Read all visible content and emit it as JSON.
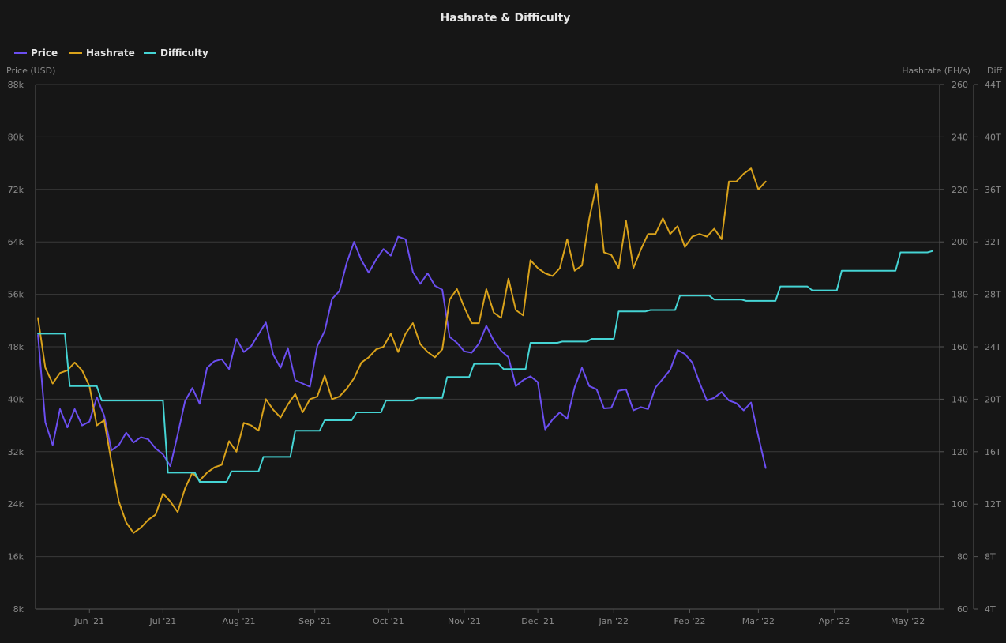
{
  "chart_data": {
    "type": "line",
    "title": "Hashrate & Difficulty",
    "legend": [
      "Price",
      "Hashrate",
      "Difficulty"
    ],
    "legend_position": "top-left",
    "grid": true,
    "x_labels": [
      "Jun '21",
      "Jul '21",
      "Aug '21",
      "Sep '21",
      "Oct '21",
      "Nov '21",
      "Dec '21",
      "Jan '22",
      "Feb '22",
      "Mar '22",
      "Apr '22",
      "May '22"
    ],
    "x_range": [
      "2021-05-10",
      "2022-05-14"
    ],
    "axes": {
      "price": {
        "title": "Price (USD)",
        "ticks": [
          "8k",
          "16k",
          "24k",
          "32k",
          "40k",
          "48k",
          "56k",
          "64k",
          "72k",
          "80k",
          "88k"
        ],
        "range": [
          8000,
          88000
        ]
      },
      "hashrate": {
        "title": "Hashrate (EH/s)",
        "ticks": [
          "60",
          "80",
          "100",
          "120",
          "140",
          "160",
          "180",
          "200",
          "220",
          "240",
          "260"
        ],
        "range": [
          60,
          260
        ]
      },
      "difficulty": {
        "title": "Diff",
        "ticks": [
          "4T",
          "8T",
          "12T",
          "16T",
          "20T",
          "24T",
          "28T",
          "32T",
          "36T",
          "40T",
          "44T"
        ],
        "range": [
          4,
          44
        ]
      }
    },
    "colors": {
      "price": "#6b4ef0",
      "hashrate": "#d9a21b",
      "difficulty": "#45d4d4"
    },
    "series": [
      {
        "name": "Price",
        "axis": "price",
        "points": [
          [
            "2021-05-11",
            49800
          ],
          [
            "2021-05-14",
            36500
          ],
          [
            "2021-05-17",
            33000
          ],
          [
            "2021-05-20",
            38500
          ],
          [
            "2021-05-23",
            35700
          ],
          [
            "2021-05-26",
            38500
          ],
          [
            "2021-05-29",
            36000
          ],
          [
            "2021-06-01",
            36600
          ],
          [
            "2021-06-04",
            40300
          ],
          [
            "2021-06-07",
            37500
          ],
          [
            "2021-06-10",
            32200
          ],
          [
            "2021-06-13",
            33000
          ],
          [
            "2021-06-16",
            34900
          ],
          [
            "2021-06-19",
            33400
          ],
          [
            "2021-06-22",
            34200
          ],
          [
            "2021-06-25",
            33900
          ],
          [
            "2021-06-28",
            32500
          ],
          [
            "2021-07-01",
            31600
          ],
          [
            "2021-07-04",
            29800
          ],
          [
            "2021-07-07",
            34600
          ],
          [
            "2021-07-10",
            39700
          ],
          [
            "2021-07-13",
            41700
          ],
          [
            "2021-07-16",
            39300
          ],
          [
            "2021-07-19",
            44800
          ],
          [
            "2021-07-22",
            45800
          ],
          [
            "2021-07-25",
            46100
          ],
          [
            "2021-07-28",
            44600
          ],
          [
            "2021-07-31",
            49200
          ],
          [
            "2021-08-03",
            47200
          ],
          [
            "2021-08-06",
            48100
          ],
          [
            "2021-08-09",
            49900
          ],
          [
            "2021-08-12",
            51700
          ],
          [
            "2021-08-15",
            46800
          ],
          [
            "2021-08-18",
            44800
          ],
          [
            "2021-08-21",
            47800
          ],
          [
            "2021-08-24",
            42900
          ],
          [
            "2021-08-27",
            42400
          ],
          [
            "2021-08-30",
            41900
          ],
          [
            "2021-09-02",
            48100
          ],
          [
            "2021-09-05",
            50400
          ],
          [
            "2021-09-08",
            55300
          ],
          [
            "2021-09-11",
            56500
          ],
          [
            "2021-09-14",
            60800
          ],
          [
            "2021-09-17",
            64000
          ],
          [
            "2021-09-20",
            61200
          ],
          [
            "2021-09-23",
            59300
          ],
          [
            "2021-09-26",
            61300
          ],
          [
            "2021-09-29",
            62900
          ],
          [
            "2021-10-02",
            61900
          ],
          [
            "2021-10-05",
            64800
          ],
          [
            "2021-10-08",
            64400
          ],
          [
            "2021-10-11",
            59400
          ],
          [
            "2021-10-14",
            57600
          ],
          [
            "2021-10-17",
            59200
          ],
          [
            "2021-10-20",
            57300
          ],
          [
            "2021-10-23",
            56700
          ],
          [
            "2021-10-26",
            49500
          ],
          [
            "2021-10-29",
            48600
          ],
          [
            "2021-11-01",
            47300
          ],
          [
            "2021-11-04",
            47100
          ],
          [
            "2021-11-07",
            48500
          ],
          [
            "2021-11-10",
            51200
          ],
          [
            "2021-11-13",
            48900
          ],
          [
            "2021-11-16",
            47400
          ],
          [
            "2021-11-19",
            46400
          ],
          [
            "2021-11-22",
            42000
          ],
          [
            "2021-11-25",
            42900
          ],
          [
            "2021-11-28",
            43500
          ],
          [
            "2021-12-01",
            42600
          ],
          [
            "2021-12-04",
            35400
          ],
          [
            "2021-12-07",
            36900
          ],
          [
            "2021-12-10",
            38000
          ],
          [
            "2021-12-13",
            37000
          ],
          [
            "2021-12-16",
            41800
          ],
          [
            "2021-12-19",
            44800
          ],
          [
            "2021-12-22",
            42000
          ],
          [
            "2021-12-25",
            41500
          ],
          [
            "2021-12-28",
            38600
          ],
          [
            "2021-12-31",
            38700
          ],
          [
            "2022-01-03",
            41300
          ],
          [
            "2022-01-06",
            41500
          ],
          [
            "2022-01-09",
            38300
          ],
          [
            "2022-01-12",
            38800
          ],
          [
            "2022-01-15",
            38500
          ],
          [
            "2022-01-18",
            41800
          ],
          [
            "2022-01-21",
            43100
          ],
          [
            "2022-01-24",
            44500
          ],
          [
            "2022-01-27",
            47500
          ],
          [
            "2022-01-30",
            46900
          ],
          [
            "2022-02-02",
            45600
          ],
          [
            "2022-02-05",
            42500
          ],
          [
            "2022-02-08",
            39800
          ],
          [
            "2022-02-11",
            40200
          ],
          [
            "2022-02-14",
            41100
          ],
          [
            "2022-02-17",
            39800
          ],
          [
            "2022-02-20",
            39400
          ],
          [
            "2022-02-23",
            38300
          ],
          [
            "2022-02-26",
            39500
          ],
          [
            "2022-03-01",
            34300
          ],
          [
            "2022-03-04",
            29500
          ]
        ]
      },
      {
        "name": "Hashrate",
        "axis": "hashrate",
        "points": [
          [
            "2021-05-11",
            171
          ],
          [
            "2021-05-14",
            152
          ],
          [
            "2021-05-17",
            146
          ],
          [
            "2021-05-20",
            150
          ],
          [
            "2021-05-23",
            151
          ],
          [
            "2021-05-26",
            154
          ],
          [
            "2021-05-29",
            151
          ],
          [
            "2021-06-01",
            145
          ],
          [
            "2021-06-04",
            130
          ],
          [
            "2021-06-07",
            132
          ],
          [
            "2021-06-10",
            116
          ],
          [
            "2021-06-13",
            101
          ],
          [
            "2021-06-16",
            93
          ],
          [
            "2021-06-19",
            89
          ],
          [
            "2021-06-22",
            91
          ],
          [
            "2021-06-25",
            94
          ],
          [
            "2021-06-28",
            96
          ],
          [
            "2021-07-01",
            104
          ],
          [
            "2021-07-04",
            101
          ],
          [
            "2021-07-07",
            97
          ],
          [
            "2021-07-10",
            106
          ],
          [
            "2021-07-13",
            112
          ],
          [
            "2021-07-16",
            109
          ],
          [
            "2021-07-19",
            112
          ],
          [
            "2021-07-22",
            114
          ],
          [
            "2021-07-25",
            115
          ],
          [
            "2021-07-28",
            124
          ],
          [
            "2021-07-31",
            120
          ],
          [
            "2021-08-03",
            131
          ],
          [
            "2021-08-06",
            130
          ],
          [
            "2021-08-09",
            128
          ],
          [
            "2021-08-12",
            140
          ],
          [
            "2021-08-15",
            136
          ],
          [
            "2021-08-18",
            133
          ],
          [
            "2021-08-21",
            138
          ],
          [
            "2021-08-24",
            142
          ],
          [
            "2021-08-27",
            135
          ],
          [
            "2021-08-30",
            140
          ],
          [
            "2021-09-02",
            141
          ],
          [
            "2021-09-05",
            149
          ],
          [
            "2021-09-08",
            140
          ],
          [
            "2021-09-11",
            141
          ],
          [
            "2021-09-14",
            144
          ],
          [
            "2021-09-17",
            148
          ],
          [
            "2021-09-20",
            154
          ],
          [
            "2021-09-23",
            156
          ],
          [
            "2021-09-26",
            159
          ],
          [
            "2021-09-29",
            160
          ],
          [
            "2021-10-02",
            165
          ],
          [
            "2021-10-05",
            158
          ],
          [
            "2021-10-08",
            165
          ],
          [
            "2021-10-11",
            169
          ],
          [
            "2021-10-14",
            161
          ],
          [
            "2021-10-17",
            158
          ],
          [
            "2021-10-20",
            156
          ],
          [
            "2021-10-23",
            159
          ],
          [
            "2021-10-26",
            178
          ],
          [
            "2021-10-29",
            182
          ],
          [
            "2021-11-01",
            175
          ],
          [
            "2021-11-04",
            169
          ],
          [
            "2021-11-07",
            169
          ],
          [
            "2021-11-10",
            182
          ],
          [
            "2021-11-13",
            173
          ],
          [
            "2021-11-16",
            171
          ],
          [
            "2021-11-19",
            186
          ],
          [
            "2021-11-22",
            174
          ],
          [
            "2021-11-25",
            172
          ],
          [
            "2021-11-28",
            193
          ],
          [
            "2021-12-01",
            190
          ],
          [
            "2021-12-04",
            188
          ],
          [
            "2021-12-07",
            187
          ],
          [
            "2021-12-10",
            190
          ],
          [
            "2021-12-13",
            201
          ],
          [
            "2021-12-16",
            189
          ],
          [
            "2021-12-19",
            191
          ],
          [
            "2021-12-22",
            209
          ],
          [
            "2021-12-25",
            222
          ],
          [
            "2021-12-28",
            196
          ],
          [
            "2021-12-31",
            195
          ],
          [
            "2022-01-03",
            190
          ],
          [
            "2022-01-06",
            208
          ],
          [
            "2022-01-09",
            190
          ],
          [
            "2022-01-12",
            197
          ],
          [
            "2022-01-15",
            203
          ],
          [
            "2022-01-18",
            203
          ],
          [
            "2022-01-21",
            209
          ],
          [
            "2022-01-24",
            203
          ],
          [
            "2022-01-27",
            206
          ],
          [
            "2022-01-30",
            198
          ],
          [
            "2022-02-02",
            202
          ],
          [
            "2022-02-05",
            203
          ],
          [
            "2022-02-08",
            202
          ],
          [
            "2022-02-11",
            205
          ],
          [
            "2022-02-14",
            201
          ],
          [
            "2022-02-17",
            223
          ],
          [
            "2022-02-20",
            223
          ],
          [
            "2022-02-23",
            226
          ],
          [
            "2022-02-26",
            228
          ],
          [
            "2022-03-01",
            220
          ],
          [
            "2022-03-04",
            223
          ]
        ]
      },
      {
        "name": "Difficulty",
        "axis": "difficulty",
        "points": [
          [
            "2021-05-11",
            25.0
          ],
          [
            "2021-05-22",
            25.0
          ],
          [
            "2021-05-24",
            21.0
          ],
          [
            "2021-06-04",
            21.0
          ],
          [
            "2021-06-06",
            19.9
          ],
          [
            "2021-07-01",
            19.9
          ],
          [
            "2021-07-03",
            14.4
          ],
          [
            "2021-07-14",
            14.4
          ],
          [
            "2021-07-16",
            13.7
          ],
          [
            "2021-07-27",
            13.7
          ],
          [
            "2021-07-29",
            14.5
          ],
          [
            "2021-08-09",
            14.5
          ],
          [
            "2021-08-11",
            15.6
          ],
          [
            "2021-08-22",
            15.6
          ],
          [
            "2021-08-24",
            17.6
          ],
          [
            "2021-09-03",
            17.6
          ],
          [
            "2021-09-05",
            18.4
          ],
          [
            "2021-09-16",
            18.4
          ],
          [
            "2021-09-18",
            19.0
          ],
          [
            "2021-09-28",
            19.0
          ],
          [
            "2021-09-30",
            19.9
          ],
          [
            "2021-10-11",
            19.9
          ],
          [
            "2021-10-13",
            20.1
          ],
          [
            "2021-10-23",
            20.1
          ],
          [
            "2021-10-25",
            21.7
          ],
          [
            "2021-11-03",
            21.7
          ],
          [
            "2021-11-05",
            22.7
          ],
          [
            "2021-11-15",
            22.7
          ],
          [
            "2021-11-17",
            22.3
          ],
          [
            "2021-11-26",
            22.3
          ],
          [
            "2021-11-28",
            24.3
          ],
          [
            "2021-12-09",
            24.3
          ],
          [
            "2021-12-11",
            24.4
          ],
          [
            "2021-12-21",
            24.4
          ],
          [
            "2021-12-23",
            24.6
          ],
          [
            "2022-01-01",
            24.6
          ],
          [
            "2022-01-03",
            26.7
          ],
          [
            "2022-01-14",
            26.7
          ],
          [
            "2022-01-16",
            26.8
          ],
          [
            "2022-01-26",
            26.8
          ],
          [
            "2022-01-28",
            27.9
          ],
          [
            "2022-02-09",
            27.9
          ],
          [
            "2022-02-11",
            27.6
          ],
          [
            "2022-02-22",
            27.6
          ],
          [
            "2022-02-24",
            27.5
          ],
          [
            "2022-03-08",
            27.5
          ],
          [
            "2022-03-10",
            28.6
          ],
          [
            "2022-03-21",
            28.6
          ],
          [
            "2022-03-23",
            28.3
          ],
          [
            "2022-04-02",
            28.3
          ],
          [
            "2022-04-04",
            29.8
          ],
          [
            "2022-04-14",
            29.8
          ],
          [
            "2022-04-16",
            29.8
          ],
          [
            "2022-04-26",
            29.8
          ],
          [
            "2022-04-28",
            31.2
          ],
          [
            "2022-05-09",
            31.2
          ],
          [
            "2022-05-11",
            31.3
          ]
        ]
      }
    ]
  }
}
